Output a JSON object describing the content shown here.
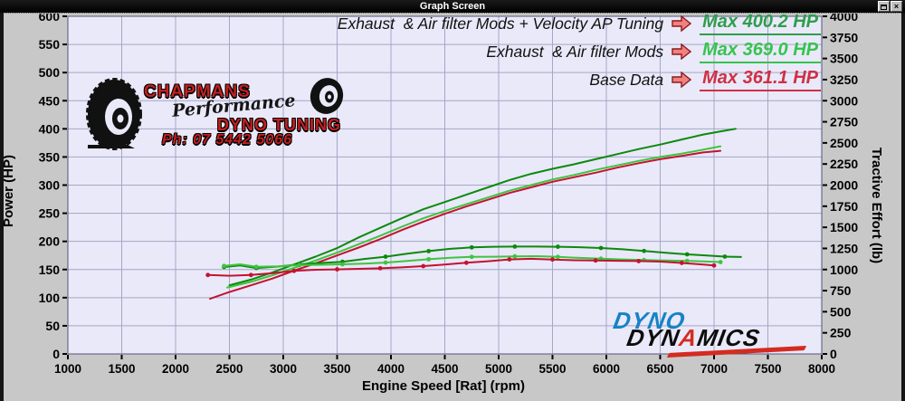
{
  "window": {
    "title": "Graph Screen",
    "close_label": "×"
  },
  "legend": {
    "rows": [
      {
        "label": "Exhaust  & Air filter Mods + Velocity AP Tuning",
        "value": "Max 400.2 HP",
        "color": "#2e9e4c"
      },
      {
        "label": "Exhaust  & Air filter Mods",
        "value": "Max 369.0 HP",
        "color": "#36c44e"
      },
      {
        "label": "Base Data",
        "value": "Max 361.1 HP",
        "color": "#cf3044"
      }
    ]
  },
  "branding": {
    "chapmans": {
      "name": "CHAPMANS",
      "tagline": "Performance",
      "service": "DYNO TUNING",
      "phone": "Ph: 07 5442 5066"
    },
    "dyno_dynamics": {
      "word1": "DYNO",
      "word2_pre": "DYN",
      "word2_a": "A",
      "word2_post": "MICS"
    }
  },
  "chart_data": {
    "type": "line",
    "title": "",
    "xlabel": "Engine Speed [Rat] (rpm)",
    "xlim": [
      1000,
      8000
    ],
    "x_tick_step": 500,
    "left_axis": {
      "label": "Power (HP)",
      "lim": [
        0,
        600
      ],
      "tick_step": 50
    },
    "right_axis": {
      "label": "Tractive Effort (lb)",
      "lim": [
        0,
        4000
      ],
      "tick_step": 250
    },
    "grid": true,
    "colors": {
      "plot_bg": "#e9e9f9",
      "grid": "#a6a6c6",
      "plot_border": "#555577",
      "tick_text": "#000000"
    },
    "series": [
      {
        "name": "Exhaust & Air filter Mods + Velocity AP Tuning — Power",
        "axis": "left",
        "unit": "HP",
        "color": "#0c8a0c",
        "markers": false,
        "max_value": 400.2,
        "points": [
          [
            2500,
            122
          ],
          [
            2700,
            132
          ],
          [
            2900,
            145
          ],
          [
            3100,
            159
          ],
          [
            3300,
            173
          ],
          [
            3500,
            188
          ],
          [
            3700,
            207
          ],
          [
            3900,
            224
          ],
          [
            4100,
            241
          ],
          [
            4300,
            257
          ],
          [
            4500,
            270
          ],
          [
            4700,
            283
          ],
          [
            4900,
            296
          ],
          [
            5100,
            309
          ],
          [
            5300,
            320
          ],
          [
            5500,
            329
          ],
          [
            5700,
            337
          ],
          [
            5900,
            346
          ],
          [
            6100,
            355
          ],
          [
            6300,
            364
          ],
          [
            6500,
            372
          ],
          [
            6700,
            381
          ],
          [
            6900,
            390
          ],
          [
            7050,
            395
          ],
          [
            7200,
            400
          ]
        ]
      },
      {
        "name": "Exhaust & Air filter Mods — Power",
        "axis": "left",
        "unit": "HP",
        "color": "#3fc43f",
        "markers": false,
        "max_value": 369.0,
        "points": [
          [
            2480,
            118
          ],
          [
            2700,
            128
          ],
          [
            2900,
            140
          ],
          [
            3100,
            153
          ],
          [
            3300,
            166
          ],
          [
            3500,
            180
          ],
          [
            3700,
            195
          ],
          [
            3900,
            210
          ],
          [
            4100,
            226
          ],
          [
            4300,
            241
          ],
          [
            4500,
            254
          ],
          [
            4700,
            266
          ],
          [
            4900,
            278
          ],
          [
            5100,
            290
          ],
          [
            5300,
            300
          ],
          [
            5500,
            310
          ],
          [
            5700,
            318
          ],
          [
            5900,
            327
          ],
          [
            6100,
            335
          ],
          [
            6300,
            343
          ],
          [
            6500,
            350
          ],
          [
            6700,
            356
          ],
          [
            6900,
            363
          ],
          [
            7060,
            369
          ]
        ]
      },
      {
        "name": "Base Data — Power",
        "axis": "left",
        "unit": "HP",
        "color": "#c41230",
        "markers": false,
        "max_value": 361.1,
        "points": [
          [
            2320,
            98
          ],
          [
            2500,
            110
          ],
          [
            2700,
            122
          ],
          [
            2900,
            134
          ],
          [
            3100,
            148
          ],
          [
            3300,
            161
          ],
          [
            3500,
            175
          ],
          [
            3700,
            189
          ],
          [
            3900,
            204
          ],
          [
            4100,
            220
          ],
          [
            4300,
            235
          ],
          [
            4500,
            249
          ],
          [
            4700,
            262
          ],
          [
            4900,
            274
          ],
          [
            5100,
            286
          ],
          [
            5300,
            296
          ],
          [
            5500,
            306
          ],
          [
            5700,
            314
          ],
          [
            5900,
            322
          ],
          [
            6100,
            331
          ],
          [
            6300,
            339
          ],
          [
            6500,
            346
          ],
          [
            6700,
            352
          ],
          [
            6900,
            358
          ],
          [
            7060,
            361
          ]
        ]
      },
      {
        "name": "Exhaust & Air filter Mods + Velocity AP Tuning — Tractive Effort",
        "axis": "right",
        "unit": "lb",
        "color": "#0c8a0c",
        "markers": true,
        "points": [
          [
            2450,
            1030
          ],
          [
            2600,
            1048
          ],
          [
            2750,
            1018
          ],
          [
            2950,
            1035
          ],
          [
            3150,
            1062
          ],
          [
            3350,
            1078
          ],
          [
            3550,
            1092
          ],
          [
            3750,
            1125
          ],
          [
            3950,
            1152
          ],
          [
            4150,
            1188
          ],
          [
            4350,
            1218
          ],
          [
            4550,
            1245
          ],
          [
            4750,
            1262
          ],
          [
            4950,
            1270
          ],
          [
            5150,
            1272
          ],
          [
            5350,
            1272
          ],
          [
            5550,
            1270
          ],
          [
            5750,
            1264
          ],
          [
            5950,
            1255
          ],
          [
            6150,
            1240
          ],
          [
            6350,
            1220
          ],
          [
            6550,
            1198
          ],
          [
            6750,
            1180
          ],
          [
            6950,
            1165
          ],
          [
            7100,
            1153
          ],
          [
            7250,
            1148
          ]
        ]
      },
      {
        "name": "Exhaust & Air filter Mods — Tractive Effort",
        "axis": "right",
        "unit": "lb",
        "color": "#3fc43f",
        "markers": true,
        "points": [
          [
            2450,
            1042
          ],
          [
            2600,
            1062
          ],
          [
            2750,
            1032
          ],
          [
            2950,
            1038
          ],
          [
            3150,
            1052
          ],
          [
            3350,
            1056
          ],
          [
            3550,
            1062
          ],
          [
            3750,
            1070
          ],
          [
            3950,
            1082
          ],
          [
            4150,
            1102
          ],
          [
            4350,
            1122
          ],
          [
            4550,
            1140
          ],
          [
            4750,
            1150
          ],
          [
            4950,
            1152
          ],
          [
            5150,
            1156
          ],
          [
            5350,
            1158
          ],
          [
            5550,
            1150
          ],
          [
            5750,
            1138
          ],
          [
            5950,
            1128
          ],
          [
            6150,
            1120
          ],
          [
            6350,
            1112
          ],
          [
            6550,
            1108
          ],
          [
            6750,
            1102
          ],
          [
            6950,
            1094
          ],
          [
            7060,
            1088
          ]
        ]
      },
      {
        "name": "Base Data — Tractive Effort",
        "axis": "right",
        "unit": "lb",
        "color": "#c41230",
        "markers": true,
        "points": [
          [
            2300,
            935
          ],
          [
            2500,
            927
          ],
          [
            2700,
            935
          ],
          [
            2900,
            958
          ],
          [
            3100,
            984
          ],
          [
            3300,
            997
          ],
          [
            3500,
            1002
          ],
          [
            3700,
            1008
          ],
          [
            3900,
            1015
          ],
          [
            4100,
            1025
          ],
          [
            4300,
            1040
          ],
          [
            4500,
            1060
          ],
          [
            4700,
            1080
          ],
          [
            4900,
            1098
          ],
          [
            5100,
            1120
          ],
          [
            5300,
            1127
          ],
          [
            5500,
            1119
          ],
          [
            5700,
            1110
          ],
          [
            5900,
            1107
          ],
          [
            6100,
            1104
          ],
          [
            6300,
            1100
          ],
          [
            6500,
            1094
          ],
          [
            6700,
            1078
          ],
          [
            6900,
            1058
          ],
          [
            7000,
            1048
          ]
        ]
      }
    ]
  }
}
